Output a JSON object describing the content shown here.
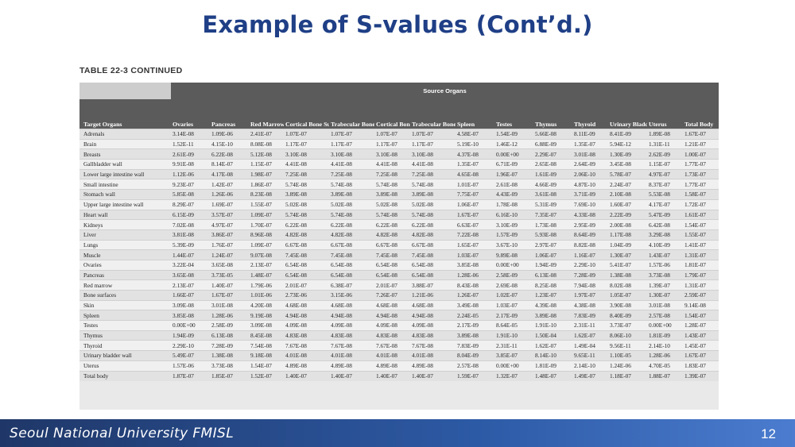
{
  "slide": {
    "title": "Example of S-values (Cont’d.)",
    "table_caption": "TABLE 22-3 CONTINUED",
    "footer_text": "Seoul National University FMISL",
    "page_number": "12"
  },
  "table": {
    "source_header": "Source Organs",
    "columns": [
      "Target Organs",
      "Ovaries",
      "Pancreas",
      "Red Marrow",
      "Cortical Bone Surfaces",
      "Trabecular Bone Surfaces",
      "Cortical Bone Volume",
      "Trabecular Bone Volume",
      "Spleen",
      "Testes",
      "Thymus",
      "Thyroid",
      "Urinary Bladder Contents",
      "Uterus",
      "Total Body"
    ],
    "rows": [
      [
        "Adrenals",
        "3.14E-08",
        "1.09E-06",
        "2.41E-07",
        "1.07E-07",
        "1.07E-07",
        "1.07E-07",
        "1.07E-07",
        "4.58E-07",
        "1.54E-09",
        "5.66E-08",
        "8.11E-09",
        "8.41E-09",
        "1.89E-08",
        "1.67E-07"
      ],
      [
        "Brain",
        "1.52E-11",
        "4.15E-10",
        "8.08E-08",
        "1.17E-07",
        "1.17E-07",
        "1.17E-07",
        "1.17E-07",
        "5.19E-10",
        "1.46E-12",
        "6.88E-09",
        "1.35E-07",
        "5.94E-12",
        "1.31E-11",
        "1.21E-07"
      ],
      [
        "Breasts",
        "2.61E-09",
        "6.22E-08",
        "5.12E-08",
        "3.10E-08",
        "3.10E-08",
        "3.10E-08",
        "3.10E-08",
        "4.37E-08",
        "0.00E+00",
        "2.29E-07",
        "3.01E-08",
        "1.30E-09",
        "2.62E-09",
        "1.00E-07"
      ],
      [
        "Gallbladder wall",
        "9.91E-08",
        "8.14E-07",
        "1.15E-07",
        "4.41E-08",
        "4.41E-08",
        "4.41E-08",
        "4.41E-08",
        "1.35E-07",
        "6.71E-09",
        "2.65E-08",
        "2.64E-09",
        "3.45E-08",
        "1.15E-07",
        "1.77E-07"
      ],
      [
        "Lower large intestine wall",
        "1.12E-06",
        "4.17E-08",
        "1.98E-07",
        "7.25E-08",
        "7.25E-08",
        "7.25E-08",
        "7.25E-08",
        "4.65E-08",
        "1.96E-07",
        "1.61E-09",
        "2.06E-10",
        "5.78E-07",
        "4.97E-07",
        "1.73E-07"
      ],
      [
        "Small intestine",
        "9.23E-07",
        "1.42E-07",
        "1.86E-07",
        "5.74E-08",
        "5.74E-08",
        "5.74E-08",
        "5.74E-08",
        "1.01E-07",
        "2.61E-08",
        "4.66E-09",
        "4.87E-10",
        "2.24E-07",
        "8.37E-07",
        "1.77E-07"
      ],
      [
        "Stomach wall",
        "5.85E-08",
        "1.26E-06",
        "8.23E-08",
        "3.89E-08",
        "3.89E-08",
        "3.89E-08",
        "3.89E-08",
        "7.75E-07",
        "4.43E-09",
        "3.61E-08",
        "3.71E-09",
        "2.10E-08",
        "5.53E-08",
        "1.58E-07"
      ],
      [
        "Upper large intestine wall",
        "8.29E-07",
        "1.69E-07",
        "1.55E-07",
        "5.02E-08",
        "5.02E-08",
        "5.02E-08",
        "5.02E-08",
        "1.06E-07",
        "1.78E-08",
        "5.31E-09",
        "7.69E-10",
        "1.60E-07",
        "4.17E-07",
        "1.72E-07"
      ],
      [
        "Heart wall",
        "6.15E-09",
        "3.57E-07",
        "1.09E-07",
        "5.74E-08",
        "5.74E-08",
        "5.74E-08",
        "5.74E-08",
        "1.67E-07",
        "6.16E-10",
        "7.35E-07",
        "4.33E-08",
        "2.22E-09",
        "5.47E-09",
        "1.61E-07"
      ],
      [
        "Kidneys",
        "7.02E-08",
        "4.97E-07",
        "1.70E-07",
        "6.22E-08",
        "6.22E-08",
        "6.22E-08",
        "6.22E-08",
        "6.63E-07",
        "3.10E-09",
        "1.73E-08",
        "2.95E-09",
        "2.00E-08",
        "6.42E-08",
        "1.54E-07"
      ],
      [
        "Liver",
        "3.81E-08",
        "3.86E-07",
        "8.96E-08",
        "4.82E-08",
        "4.82E-08",
        "4.82E-08",
        "4.82E-08",
        "7.22E-08",
        "1.57E-09",
        "5.93E-08",
        "8.64E-09",
        "1.17E-08",
        "3.29E-08",
        "1.55E-07"
      ],
      [
        "Lungs",
        "5.39E-09",
        "1.76E-07",
        "1.09E-07",
        "6.67E-08",
        "6.67E-08",
        "6.67E-08",
        "6.67E-08",
        "1.65E-07",
        "3.67E-10",
        "2.97E-07",
        "8.82E-08",
        "1.04E-09",
        "4.10E-09",
        "1.41E-07"
      ],
      [
        "Muscle",
        "1.44E-07",
        "1.24E-07",
        "9.07E-08",
        "7.45E-08",
        "7.45E-08",
        "7.45E-08",
        "7.45E-08",
        "1.03E-07",
        "9.89E-08",
        "1.06E-07",
        "1.16E-07",
        "1.30E-07",
        "1.43E-07",
        "1.31E-07"
      ],
      [
        "Ovaries",
        "3.22E-04",
        "3.65E-08",
        "2.13E-07",
        "6.54E-08",
        "6.54E-08",
        "6.54E-08",
        "6.54E-08",
        "3.85E-08",
        "0.00E+00",
        "1.94E-09",
        "2.29E-10",
        "5.41E-07",
        "1.57E-06",
        "1.81E-07"
      ],
      [
        "Pancreas",
        "3.65E-08",
        "3.73E-05",
        "1.48E-07",
        "6.54E-08",
        "6.54E-08",
        "6.54E-08",
        "6.54E-08",
        "1.28E-06",
        "2.58E-09",
        "6.13E-08",
        "7.28E-09",
        "1.38E-08",
        "3.73E-08",
        "1.79E-07"
      ],
      [
        "Red marrow",
        "2.13E-07",
        "1.40E-07",
        "1.79E-06",
        "2.01E-07",
        "6.38E-07",
        "2.01E-07",
        "3.88E-07",
        "8.43E-08",
        "2.69E-08",
        "8.25E-08",
        "7.94E-08",
        "8.02E-08",
        "1.39E-07",
        "1.31E-07"
      ],
      [
        "Bone surfaces",
        "1.66E-07",
        "1.67E-07",
        "1.01E-06",
        "2.73E-06",
        "3.15E-06",
        "7.26E-07",
        "1.21E-06",
        "1.26E-07",
        "1.02E-07",
        "1.23E-07",
        "1.97E-07",
        "1.05E-07",
        "1.30E-07",
        "2.59E-07"
      ],
      [
        "Skin",
        "3.09E-08",
        "3.01E-08",
        "4.20E-08",
        "4.68E-08",
        "4.68E-08",
        "4.68E-08",
        "4.68E-08",
        "3.49E-08",
        "1.03E-07",
        "4.39E-08",
        "4.38E-08",
        "3.90E-08",
        "3.01E-08",
        "9.14E-08"
      ],
      [
        "Spleen",
        "3.85E-08",
        "1.28E-06",
        "9.19E-08",
        "4.94E-08",
        "4.94E-08",
        "4.94E-08",
        "4.94E-08",
        "2.24E-05",
        "2.17E-09",
        "3.89E-08",
        "7.83E-09",
        "8.40E-09",
        "2.57E-08",
        "1.54E-07"
      ],
      [
        "Testes",
        "0.00E+00",
        "2.58E-09",
        "3.09E-08",
        "4.09E-08",
        "4.09E-08",
        "4.09E-08",
        "4.09E-08",
        "2.17E-09",
        "8.64E-05",
        "1.91E-10",
        "2.31E-11",
        "3.73E-07",
        "0.00E+00",
        "1.28E-07"
      ],
      [
        "Thymus",
        "1.94E-09",
        "6.13E-08",
        "8.45E-08",
        "4.83E-08",
        "4.83E-08",
        "4.83E-08",
        "4.83E-08",
        "3.89E-08",
        "1.91E-10",
        "1.50E-04",
        "1.62E-07",
        "8.06E-10",
        "1.81E-09",
        "1.43E-07"
      ],
      [
        "Thyroid",
        "2.29E-10",
        "7.28E-09",
        "7.54E-08",
        "7.67E-08",
        "7.67E-08",
        "7.67E-08",
        "7.67E-08",
        "7.83E-09",
        "2.31E-11",
        "1.62E-07",
        "1.49E-04",
        "9.56E-11",
        "2.14E-10",
        "1.45E-07"
      ],
      [
        "Urinary bladder wall",
        "5.49E-07",
        "1.38E-08",
        "9.18E-08",
        "4.01E-08",
        "4.01E-08",
        "4.01E-08",
        "4.01E-08",
        "8.04E-09",
        "3.85E-07",
        "8.14E-10",
        "9.65E-11",
        "1.10E-05",
        "1.28E-06",
        "1.67E-07"
      ],
      [
        "Uterus",
        "1.57E-06",
        "3.73E-08",
        "1.54E-07",
        "4.89E-08",
        "4.89E-08",
        "4.89E-08",
        "4.89E-08",
        "2.57E-08",
        "0.00E+00",
        "1.81E-09",
        "2.14E-10",
        "1.24E-06",
        "4.70E-05",
        "1.83E-07"
      ],
      [
        "Total body",
        "1.87E-07",
        "1.85E-07",
        "1.52E-07",
        "1.40E-07",
        "1.40E-07",
        "1.40E-07",
        "1.40E-07",
        "1.59E-07",
        "1.32E-07",
        "1.48E-07",
        "1.49E-07",
        "1.18E-07",
        "1.88E-07",
        "1.39E-07"
      ]
    ]
  }
}
